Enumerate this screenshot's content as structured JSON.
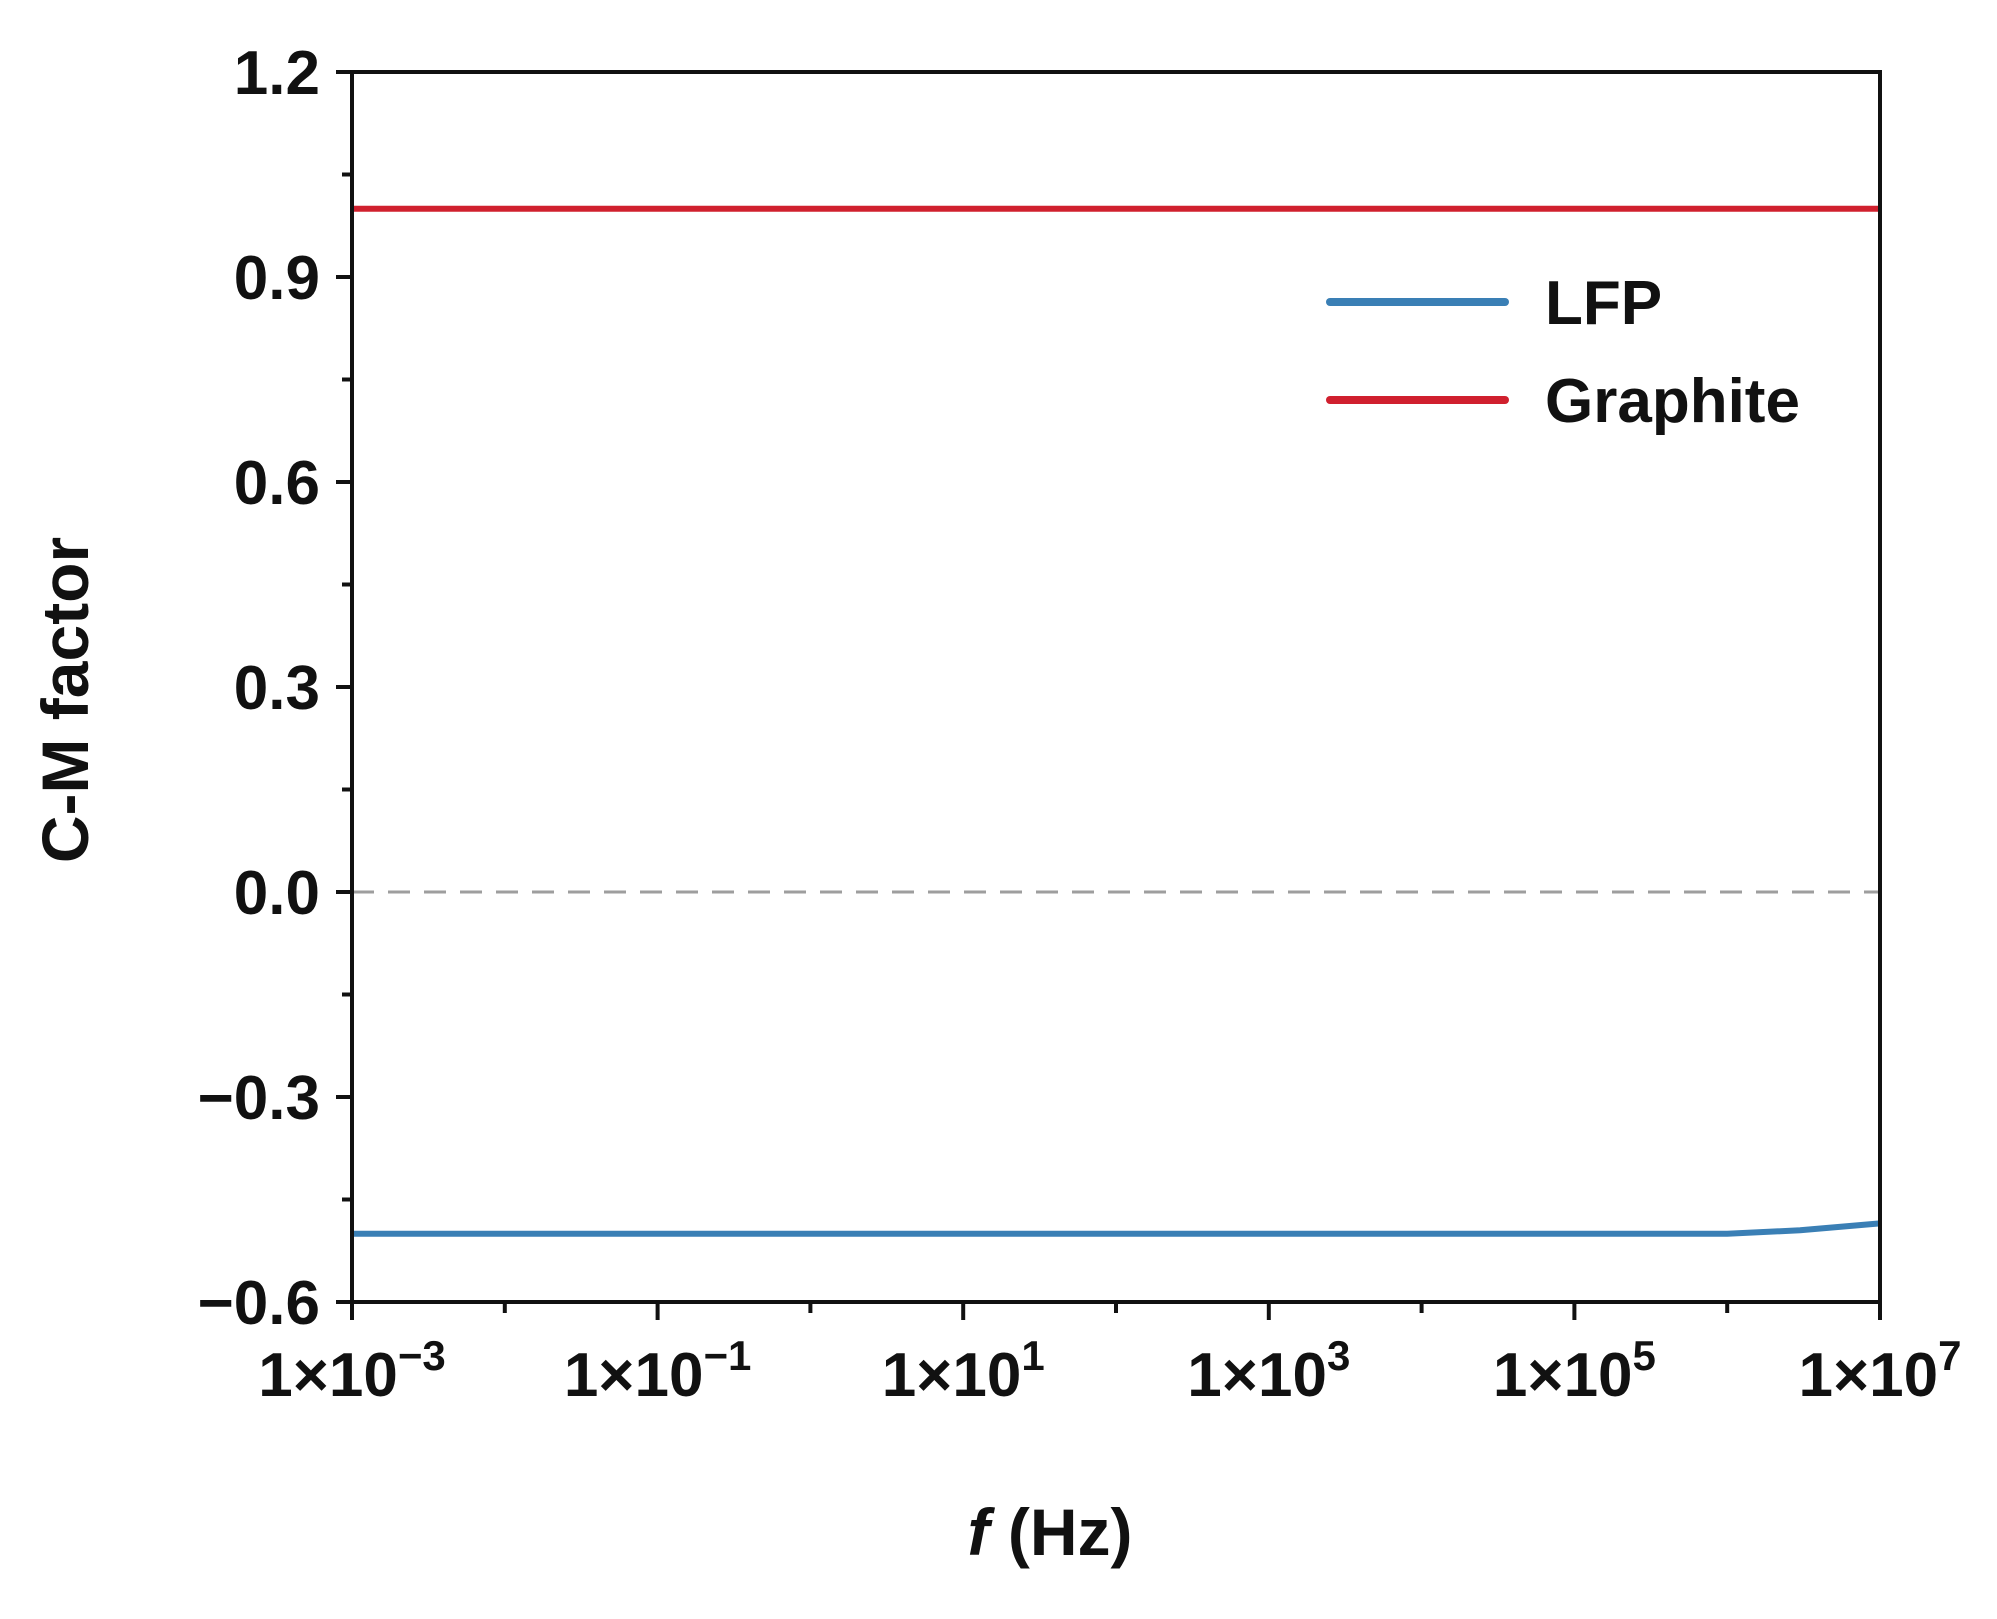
{
  "chart_data": {
    "type": "line",
    "xlabel_italic": "f",
    "xlabel_rest": " (Hz)",
    "ylabel": "C-M factor",
    "x_scale": "log",
    "xlim": [
      0.001,
      10000000
    ],
    "ylim": [
      -0.6,
      1.2
    ],
    "x_ticks": [
      {
        "value": 0.001,
        "base": "1×10",
        "exp": "−3"
      },
      {
        "value": 0.1,
        "base": "1×10",
        "exp": "−1"
      },
      {
        "value": 10,
        "base": "1×10",
        "exp": "1"
      },
      {
        "value": 1000,
        "base": "1×10",
        "exp": "3"
      },
      {
        "value": 100000,
        "base": "1×10",
        "exp": "5"
      },
      {
        "value": 10000000,
        "base": "1×10",
        "exp": "7"
      }
    ],
    "y_ticks": [
      {
        "value": 1.2,
        "label": "1.2"
      },
      {
        "value": 0.9,
        "label": "0.9"
      },
      {
        "value": 0.6,
        "label": "0.6"
      },
      {
        "value": 0.3,
        "label": "0.3"
      },
      {
        "value": 0.0,
        "label": "0.0"
      },
      {
        "value": -0.3,
        "label": "−0.3"
      },
      {
        "value": -0.6,
        "label": "−0.6"
      }
    ],
    "reference_line": {
      "y": 0.0,
      "style": "dashed",
      "color": "#9e9e9e"
    },
    "grid": false,
    "legend_position": "top-right",
    "series": [
      {
        "name": "LFP",
        "color": "#3a7fb5",
        "x": [
          0.001,
          0.01,
          0.1,
          1,
          10,
          100,
          1000,
          10000,
          100000,
          1000000,
          3000000,
          10000000
        ],
        "y": [
          -0.5,
          -0.5,
          -0.5,
          -0.5,
          -0.5,
          -0.5,
          -0.5,
          -0.5,
          -0.5,
          -0.5,
          -0.495,
          -0.485
        ]
      },
      {
        "name": "Graphite",
        "color": "#d0202e",
        "x": [
          0.001,
          10000000
        ],
        "y": [
          1.0,
          1.0
        ]
      }
    ]
  }
}
